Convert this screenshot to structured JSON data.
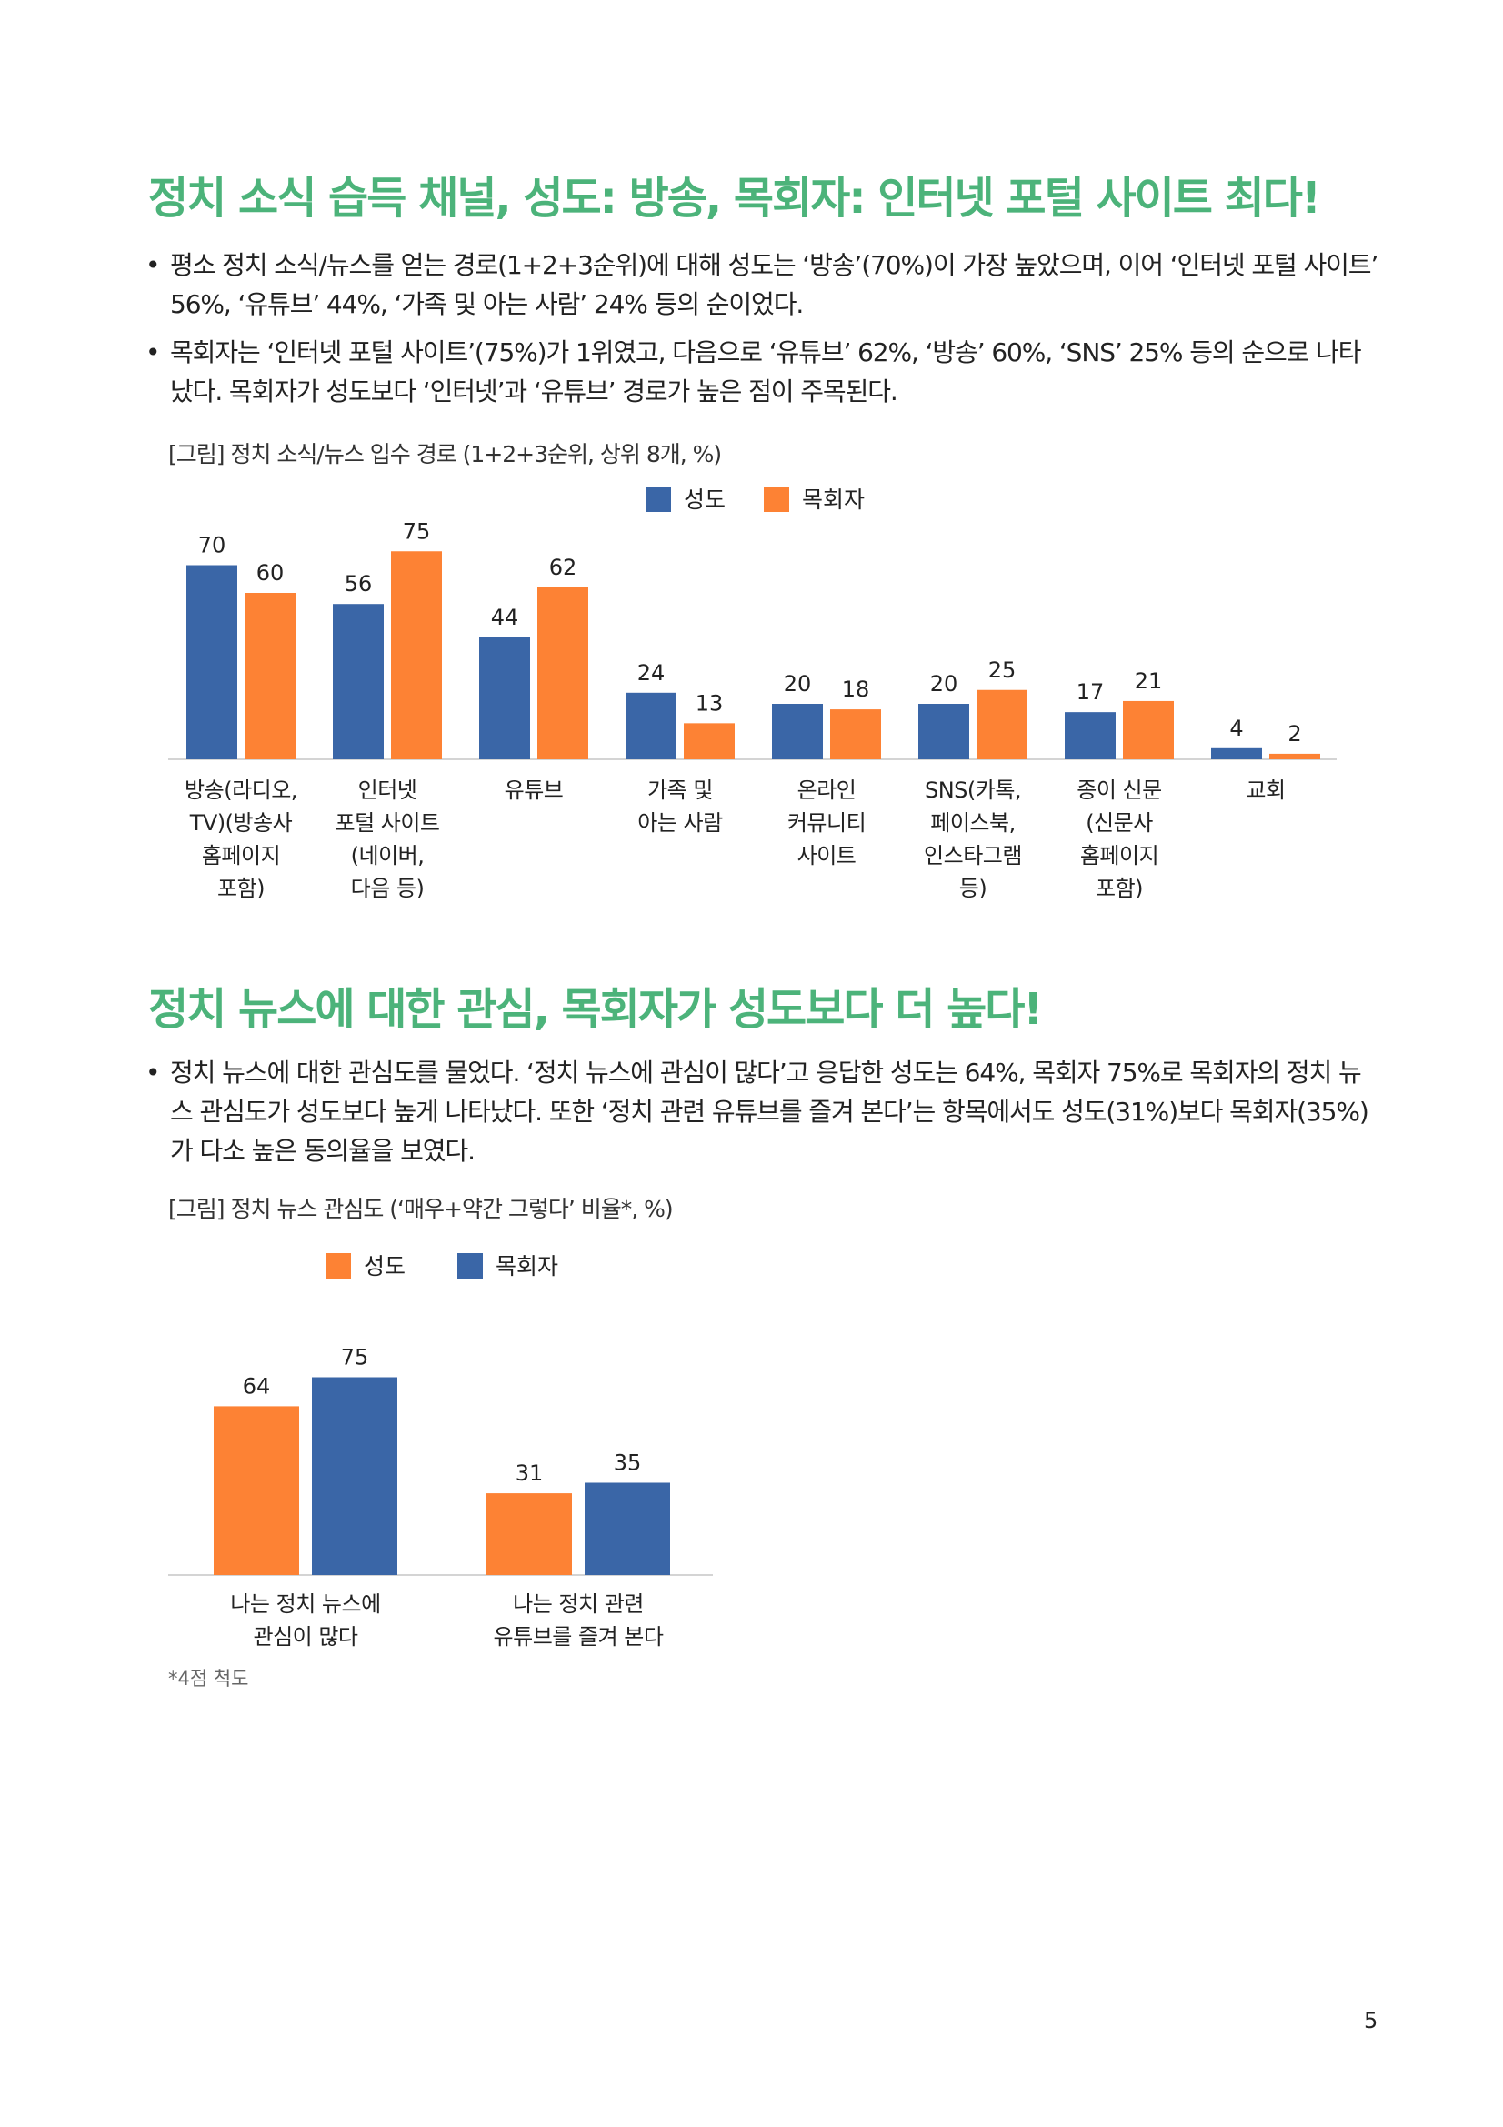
{
  "section1": {
    "title": "정치 소식 습득 채널, 성도: 방송, 목회자: 인터넷 포털 사이트 최다!",
    "bullets": [
      "평소 정치 소식/뉴스를 얻는 경로(1+2+3순위)에 대해 성도는 ‘방송’(70%)이 가장 높았으며, 이어 ‘인터넷 포털 사이트’ 56%, ‘유튜브’ 44%, ‘가족 및 아는 사람’ 24% 등의 순이었다.",
      "목회자는 ‘인터넷 포털 사이트’(75%)가 1위였고, 다음으로 ‘유튜브’ 62%, ‘방송’ 60%, ‘SNS’ 25% 등의 순으로 나타났다. 목회자가 성도보다 ‘인터넷’과 ‘유튜브’ 경로가 높은 점이 주목된다."
    ],
    "figure_caption": "[그림] 정치 소식/뉴스 입수 경로 (1+2+3순위, 상위 8개, %)"
  },
  "section2": {
    "title": "정치 뉴스에 대한 관심, 목회자가 성도보다 더 높다!",
    "bullets": [
      "정치 뉴스에 대한 관심도를 물었다. ‘정치 뉴스에 관심이 많다’고 응답한 성도는 64%, 목회자 75%로 목회자의 정치 뉴스 관심도가 성도보다 높게 나타났다. 또한 ‘정치 관련 유튜브를 즐겨 본다’는 항목에서도 성도(31%)보다 목회자(35%)가 다소 높은 동의율을 보였다."
    ],
    "figure_caption": "[그림] 정치 뉴스 관심도 (‘매우+약간 그렇다’ 비율*, %)",
    "note": "*4점 척도"
  },
  "page_number": "5",
  "chart_data": [
    {
      "type": "bar",
      "categories": [
        [
          "방송(라디오,",
          "TV)(방송사",
          "홈페이지",
          "포함)"
        ],
        [
          "인터넷",
          "포털 사이트",
          "(네이버,",
          "다음 등)"
        ],
        [
          "유튜브"
        ],
        [
          "가족 및",
          "아는 사람"
        ],
        [
          "온라인",
          "커뮤니티",
          "사이트"
        ],
        [
          "SNS(카톡,",
          "페이스북,",
          "인스타그램",
          "등)"
        ],
        [
          "종이 신문",
          "(신문사",
          "홈페이지",
          "포함)"
        ],
        [
          "교회"
        ]
      ],
      "series": [
        {
          "name": "성도",
          "color": "#3a66a7",
          "values": [
            70,
            56,
            44,
            24,
            20,
            20,
            17,
            4
          ]
        },
        {
          "name": "목회자",
          "color": "#fd8234",
          "values": [
            60,
            75,
            62,
            13,
            18,
            25,
            21,
            2
          ]
        }
      ],
      "legend": "top-center",
      "grid": false
    },
    {
      "type": "bar",
      "categories": [
        [
          "나는 정치 뉴스에",
          "관심이 많다"
        ],
        [
          "나는 정치 관련",
          "유튜브를 즐겨 본다"
        ]
      ],
      "series": [
        {
          "name": "성도",
          "color": "#fd8234",
          "values": [
            64,
            31
          ]
        },
        {
          "name": "목회자",
          "color": "#3a66a7",
          "values": [
            75,
            35
          ]
        }
      ],
      "legend": "top-left",
      "grid": false
    }
  ]
}
